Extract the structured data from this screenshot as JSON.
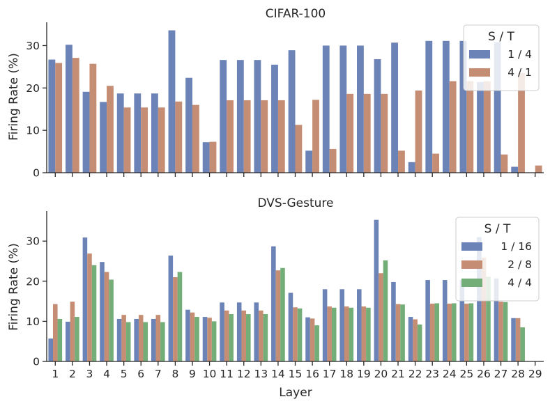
{
  "chart_data": [
    {
      "type": "bar",
      "title": "CIFAR-100",
      "xlabel": "",
      "ylabel": "Firing Rate (%)",
      "ylim": [
        0,
        35.5
      ],
      "yticks": [
        0,
        10,
        20,
        30
      ],
      "categories": [
        "1",
        "2",
        "3",
        "4",
        "5",
        "6",
        "7",
        "8",
        "9",
        "10",
        "11",
        "12",
        "13",
        "14",
        "15",
        "16",
        "17",
        "18",
        "19",
        "20",
        "21",
        "22",
        "23",
        "24",
        "25",
        "26",
        "27",
        "28",
        "29"
      ],
      "show_tick_labels": false,
      "legend": {
        "title": "S / T",
        "position": "top-right"
      },
      "series": [
        {
          "name": "1 / 4",
          "color": "#6b83b6",
          "values": [
            26.7,
            30.2,
            19.1,
            16.7,
            18.7,
            18.7,
            18.7,
            33.6,
            22.4,
            7.2,
            26.6,
            26.6,
            26.6,
            25.5,
            28.9,
            5.2,
            30.0,
            30.0,
            30.0,
            26.8,
            30.7,
            2.5,
            31.1,
            31.1,
            31.1,
            21.4,
            30.8,
            1.4,
            0
          ]
        },
        {
          "name": "4 / 1",
          "color": "#c58e74",
          "values": [
            25.9,
            27.1,
            25.7,
            20.5,
            15.4,
            15.4,
            15.4,
            16.8,
            16.0,
            7.3,
            17.1,
            17.1,
            17.1,
            17.1,
            11.3,
            17.2,
            5.6,
            18.6,
            18.6,
            18.6,
            5.2,
            19.4,
            4.5,
            21.6,
            21.6,
            21.6,
            4.3,
            23.5,
            1.7
          ]
        }
      ]
    },
    {
      "type": "bar",
      "title": "DVS-Gesture",
      "xlabel": "Layer",
      "ylabel": "Firing Rate (%)",
      "ylim": [
        0,
        37.5
      ],
      "yticks": [
        0,
        10,
        20,
        30
      ],
      "categories": [
        "1",
        "2",
        "3",
        "4",
        "5",
        "6",
        "7",
        "8",
        "9",
        "10",
        "11",
        "12",
        "13",
        "14",
        "15",
        "16",
        "17",
        "18",
        "19",
        "20",
        "21",
        "22",
        "23",
        "24",
        "25",
        "26",
        "27",
        "28",
        "29"
      ],
      "show_tick_labels": true,
      "legend": {
        "title": "S / T",
        "position": "top-right"
      },
      "series": [
        {
          "name": "1 / 16",
          "color": "#6b83b6",
          "values": [
            5.7,
            9.9,
            30.9,
            24.8,
            10.6,
            10.6,
            10.6,
            26.4,
            12.9,
            11.1,
            14.7,
            14.7,
            14.7,
            28.7,
            17.1,
            11.0,
            18.0,
            18.0,
            18.0,
            35.3,
            19.8,
            11.1,
            20.3,
            20.3,
            20.3,
            31.0,
            20.7,
            10.8,
            0
          ]
        },
        {
          "name": "2 / 8",
          "color": "#c58e74",
          "values": [
            14.3,
            14.9,
            26.9,
            22.3,
            11.6,
            11.6,
            11.6,
            21.0,
            12.2,
            10.9,
            12.7,
            12.7,
            12.7,
            22.7,
            13.5,
            10.7,
            13.7,
            13.7,
            13.7,
            22.0,
            14.3,
            10.5,
            14.4,
            14.4,
            14.4,
            25.9,
            14.9,
            10.8,
            0
          ]
        },
        {
          "name": "4 / 4",
          "color": "#73ae78",
          "values": [
            10.6,
            11.1,
            24.0,
            20.4,
            9.8,
            9.8,
            9.8,
            22.3,
            11.1,
            10.0,
            11.8,
            11.8,
            11.8,
            23.3,
            13.2,
            9.0,
            13.4,
            13.4,
            13.4,
            25.2,
            14.2,
            9.2,
            14.5,
            14.5,
            14.5,
            21.1,
            14.8,
            8.5,
            0
          ]
        }
      ]
    }
  ]
}
